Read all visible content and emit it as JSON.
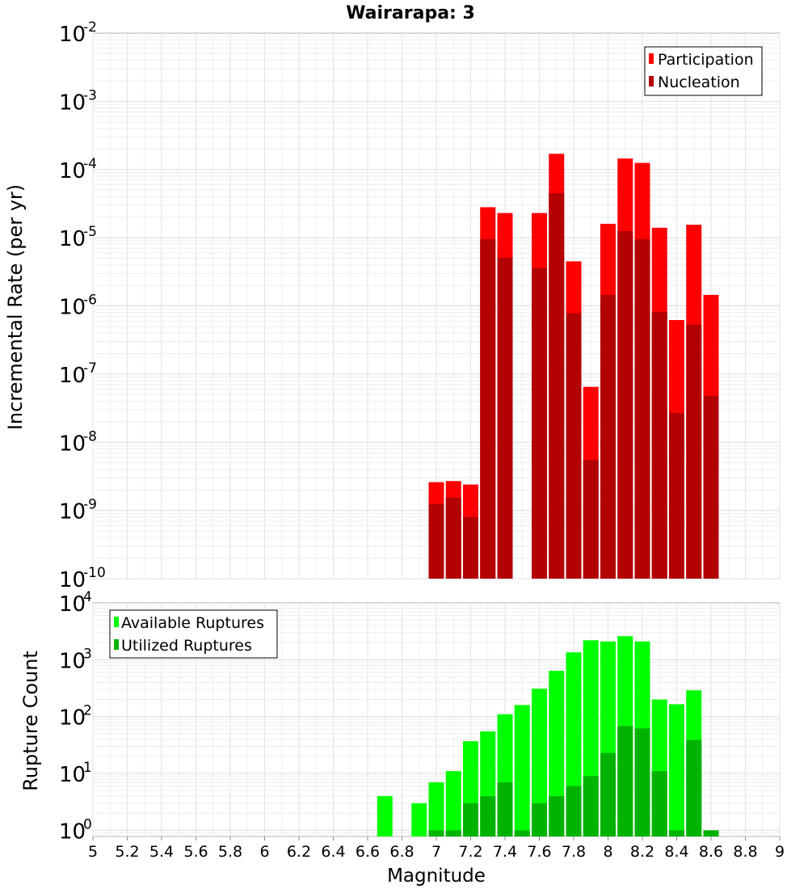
{
  "chart_data": [
    {
      "type": "bar",
      "title": "Wairarapa: 3",
      "xlabel": "",
      "ylabel": "Incremental Rate (per yr)",
      "yscale": "log",
      "xlim": [
        5,
        9
      ],
      "ylim": [
        1e-10,
        0.01
      ],
      "grid": true,
      "legend_position": "top-right",
      "x": [
        7.0,
        7.1,
        7.2,
        7.3,
        7.4,
        7.5,
        7.6,
        7.7,
        7.8,
        7.9,
        8.0,
        8.1,
        8.2,
        8.3,
        8.4,
        8.5,
        8.6
      ],
      "series": [
        {
          "name": "Participation",
          "color": "#ff0000",
          "values": [
            2.6e-09,
            2.7e-09,
            2.4e-09,
            2.8e-05,
            2.3e-05,
            null,
            2.3e-05,
            0.00017,
            4.5e-06,
            6.5e-08,
            1.6e-05,
            0.000145,
            0.000125,
            1.4e-05,
            6.2e-07,
            1.55e-05,
            1.45e-06
          ]
        },
        {
          "name": "Nucleation",
          "color": "#b30000",
          "values": [
            1.25e-09,
            1.55e-09,
            8e-10,
            9.5e-06,
            5.1e-06,
            null,
            3.6e-06,
            4.5e-05,
            7.8e-07,
            5.5e-09,
            1.45e-06,
            1.25e-05,
            9.5e-06,
            8.2e-07,
            2.7e-08,
            5.3e-07,
            4.8e-08
          ]
        }
      ]
    },
    {
      "type": "bar",
      "xlabel": "Magnitude",
      "ylabel": "Rupture Count",
      "yscale": "log",
      "xlim": [
        5,
        9
      ],
      "ylim": [
        0.78,
        10000
      ],
      "grid": true,
      "legend_position": "top-left",
      "x": [
        6.7,
        6.8,
        6.9,
        7.0,
        7.1,
        7.2,
        7.3,
        7.4,
        7.5,
        7.6,
        7.7,
        7.8,
        7.9,
        8.0,
        8.1,
        8.2,
        8.3,
        8.4,
        8.5,
        8.6
      ],
      "series": [
        {
          "name": "Available Ruptures",
          "color": "#00ff00",
          "values": [
            4,
            null,
            3,
            7,
            11,
            37,
            55,
            110,
            160,
            310,
            640,
            1350,
            2200,
            2100,
            2600,
            2100,
            200,
            165,
            290,
            1
          ]
        },
        {
          "name": "Utilized Ruptures",
          "color": "#00b300",
          "values": [
            null,
            null,
            null,
            1,
            1,
            3,
            4,
            7,
            1,
            3,
            4,
            6,
            9,
            23,
            68,
            62,
            11,
            1,
            39,
            1
          ]
        }
      ]
    }
  ],
  "ticks": {
    "top_y": [
      "10",
      "-2",
      "10",
      "-3",
      "10",
      "-4",
      "10",
      "-5",
      "10",
      "-6",
      "10",
      "-7",
      "10",
      "-8",
      "10",
      "-9",
      "10",
      "-10"
    ],
    "bottom_y": [
      "10",
      "4",
      "10",
      "3",
      "10",
      "2",
      "10",
      "1",
      "10",
      "0"
    ],
    "x": [
      "5",
      "5.2",
      "5.4",
      "5.6",
      "5.8",
      "6",
      "6.2",
      "6.4",
      "6.6",
      "6.8",
      "7",
      "7.2",
      "7.4",
      "7.6",
      "7.8",
      "8",
      "8.2",
      "8.4",
      "8.6",
      "8.8",
      "9"
    ]
  }
}
